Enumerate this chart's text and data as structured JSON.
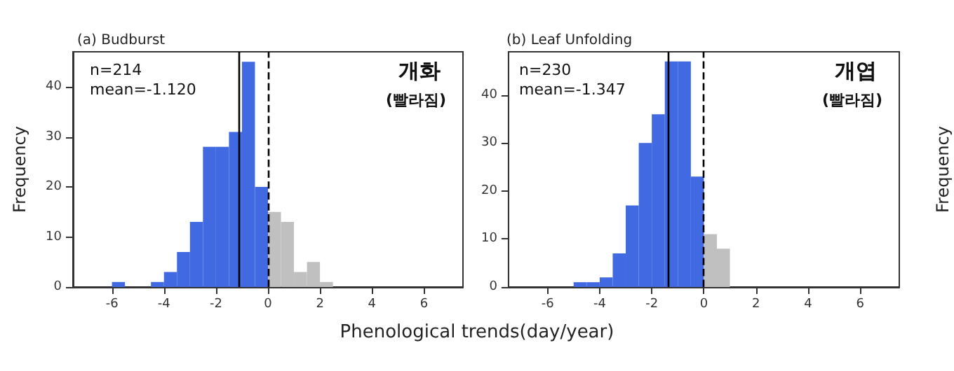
{
  "chart_data": [
    {
      "type": "histogram",
      "title": "(a) Budburst",
      "ylabel": "Frequency",
      "xlabel": "Phenological trends(day/year)",
      "bins": [
        -6,
        -5.5,
        -5,
        -4.5,
        -4,
        -3.5,
        -3,
        -2.5,
        -2,
        -1.5,
        -1,
        -0.5,
        0,
        0.5,
        1,
        1.5,
        2,
        2.5
      ],
      "values": [
        1,
        0,
        0,
        1,
        3,
        7,
        13,
        28,
        28,
        31,
        45,
        20,
        15,
        13,
        3,
        5,
        1
      ],
      "colors": [
        "#4169e1",
        "#4169e1",
        "#4169e1",
        "#4169e1",
        "#4169e1",
        "#4169e1",
        "#4169e1",
        "#4169e1",
        "#4169e1",
        "#4169e1",
        "#4169e1",
        "#4169e1",
        "#c0c0c0",
        "#c0c0c0",
        "#c0c0c0",
        "#c0c0c0",
        "#c0c0c0"
      ],
      "xlim": [
        -7.5,
        7.5
      ],
      "xticks": [
        -6,
        -4,
        -2,
        0,
        2,
        4,
        6
      ],
      "ylim": [
        0,
        47
      ],
      "yticks": [
        0,
        10,
        20,
        30,
        40
      ],
      "ref_lines": [
        {
          "axis": "x",
          "value": -1.12,
          "color": "#000000",
          "line_style": "solid"
        },
        {
          "axis": "x",
          "value": 0,
          "color": "#000000",
          "line_style": "dashed"
        }
      ],
      "annotations": [
        "n=214",
        "mean=-1.120",
        "개화",
        "(빨라짐)"
      ]
    },
    {
      "type": "histogram",
      "title": "(b) Leaf Unfolding",
      "ylabel": "Frequency",
      "bins": [
        -5,
        -4.5,
        -4,
        -3.5,
        -3,
        -2.5,
        -2,
        -1.5,
        -1,
        -0.5,
        0,
        0.5,
        1
      ],
      "values": [
        1,
        1,
        2,
        7,
        17,
        30,
        36,
        47,
        47,
        23,
        11,
        8
      ],
      "colors": [
        "#4169e1",
        "#4169e1",
        "#4169e1",
        "#4169e1",
        "#4169e1",
        "#4169e1",
        "#4169e1",
        "#4169e1",
        "#4169e1",
        "#4169e1",
        "#c0c0c0",
        "#c0c0c0"
      ],
      "xlim": [
        -7.5,
        7.5
      ],
      "xticks": [
        -6,
        -4,
        -2,
        0,
        2,
        4,
        6
      ],
      "ylim": [
        0,
        49
      ],
      "yticks": [
        0,
        10,
        20,
        30,
        40
      ],
      "ref_lines": [
        {
          "axis": "x",
          "value": -1.347,
          "color": "#000000",
          "line_style": "solid"
        },
        {
          "axis": "x",
          "value": 0,
          "color": "#000000",
          "line_style": "dashed"
        }
      ],
      "annotations": [
        "n=230",
        "mean=-1.347",
        "개엽",
        "(빨라짐)"
      ]
    }
  ]
}
